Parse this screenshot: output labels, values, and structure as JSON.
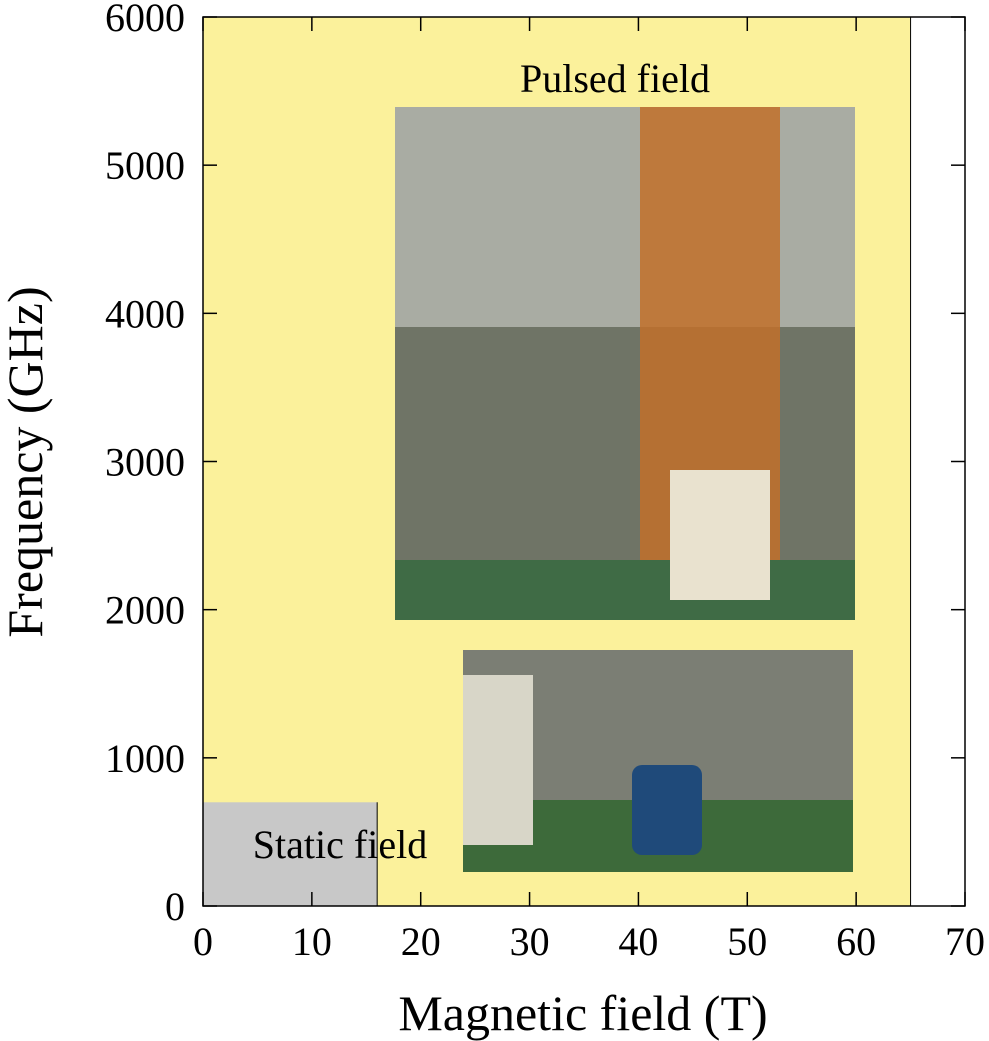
{
  "chart_data": {
    "type": "region",
    "xlabel": "Magnetic field (T)",
    "ylabel": "Frequency (GHz)",
    "xlim": [
      0,
      70
    ],
    "xticks": [
      0,
      10,
      20,
      30,
      40,
      50,
      60,
      70
    ],
    "ylim": [
      0,
      6000
    ],
    "yticks": [
      0,
      1000,
      2000,
      3000,
      4000,
      5000,
      6000
    ],
    "regions": [
      {
        "name": "Pulsed field",
        "color": "#fbf19b",
        "x": [
          0,
          65
        ],
        "y": [
          0,
          6000
        ]
      },
      {
        "name": "Static field",
        "color": "#c8c8c8",
        "x": [
          0,
          16
        ],
        "y": [
          0,
          700
        ]
      }
    ]
  }
}
